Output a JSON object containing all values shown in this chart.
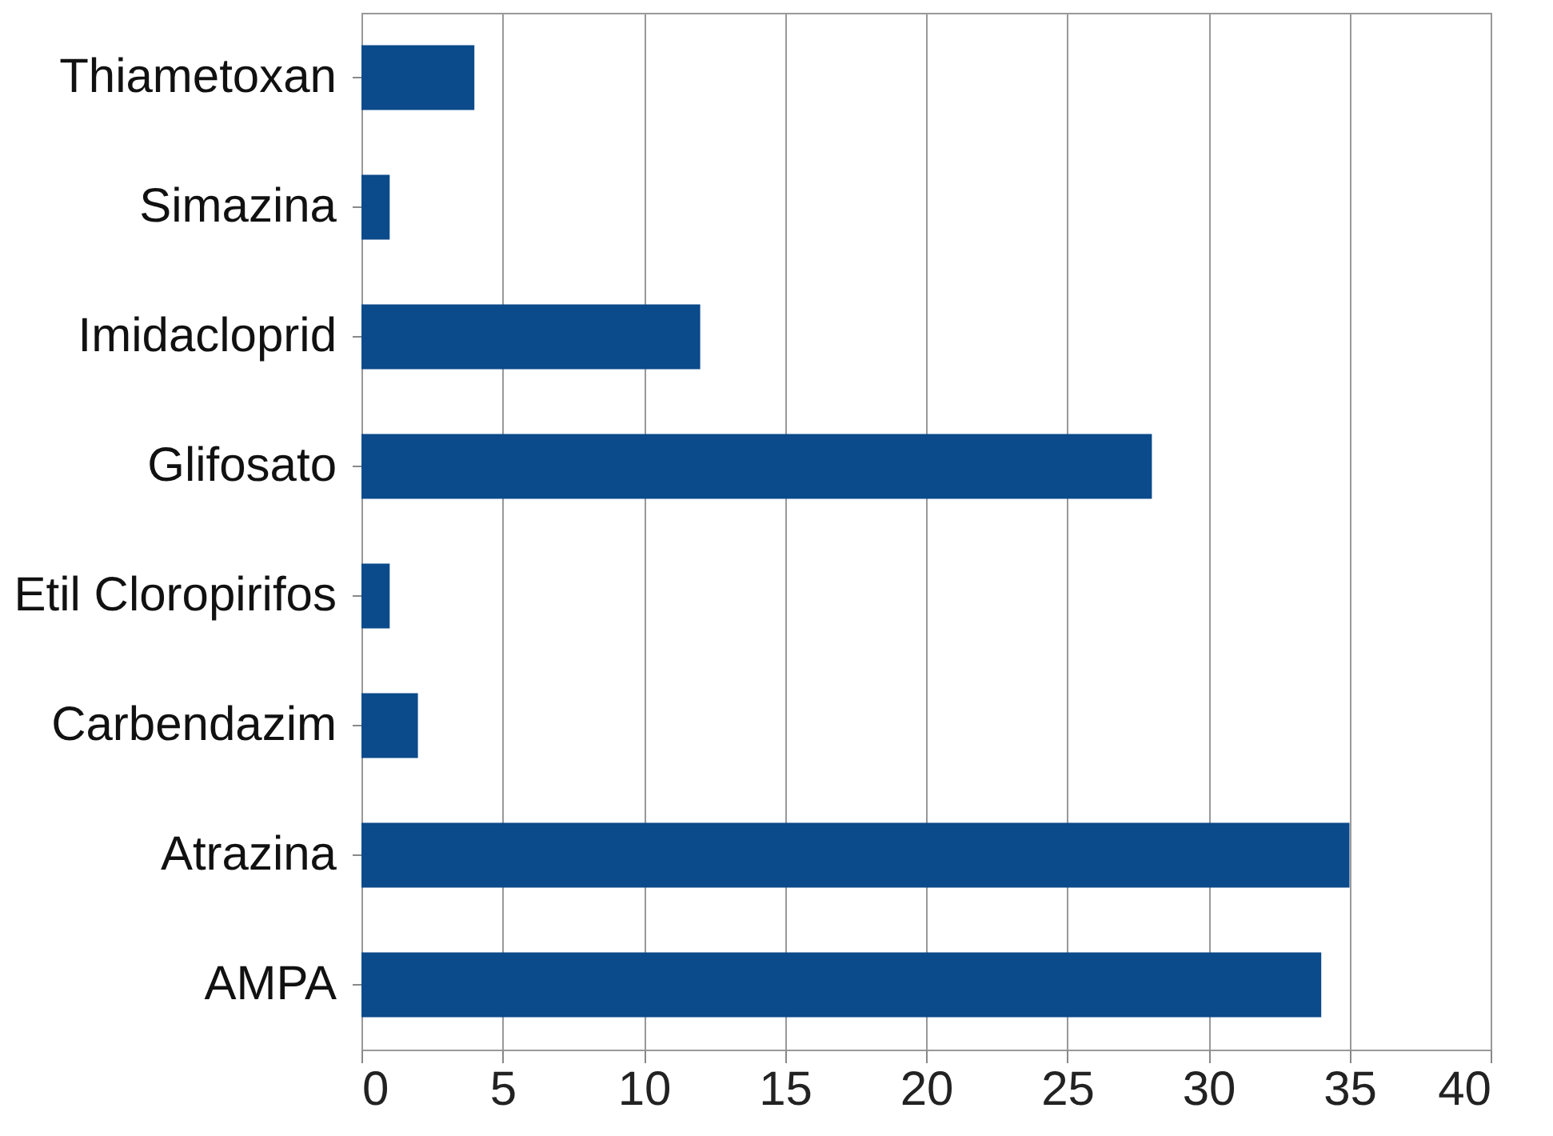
{
  "chart_data": {
    "type": "bar",
    "orientation": "horizontal",
    "categories": [
      "Thiametoxan",
      "Simazina",
      "Imidacloprid",
      "Glifosato",
      "Etil Cloropirifos",
      "Carbendazim",
      "Atrazina",
      "AMPA"
    ],
    "values": [
      4,
      1,
      12,
      28,
      1,
      2,
      35,
      34
    ],
    "color": "#0b4a8b",
    "xlim": [
      0,
      40
    ],
    "xticks": [
      0,
      5,
      10,
      15,
      20,
      25,
      30,
      35,
      40
    ],
    "grid": "x"
  }
}
